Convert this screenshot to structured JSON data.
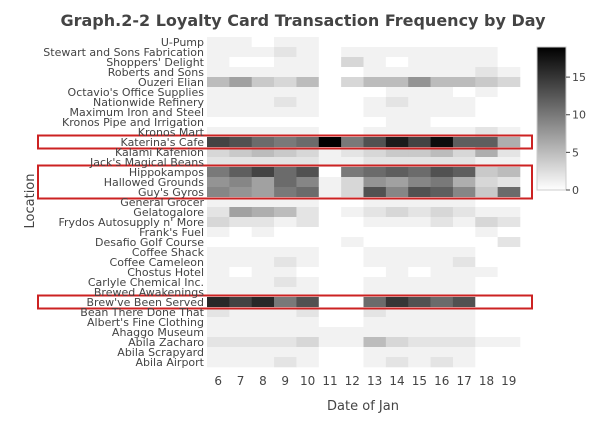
{
  "chart_data": {
    "type": "heatmap",
    "title": "Graph.2-2 Loyalty Card Transaction Frequency by Day",
    "xlabel": "Date of Jan",
    "ylabel": "Location",
    "x": [
      6,
      7,
      8,
      9,
      10,
      11,
      12,
      13,
      14,
      15,
      16,
      17,
      18,
      19
    ],
    "y": [
      "U-Pump",
      "Stewart and Sons Fabrication",
      "Shoppers' Delight",
      "Roberts and Sons",
      "Ouzeri Elian",
      "Octavio's Office Supplies",
      "Nationwide Refinery",
      "Maximum Iron and Steel",
      "Kronos Pipe and Irrigation",
      "Kronos Mart",
      "Katerina's Cafe",
      "Kalami Kafenion",
      "Jack's Magical Beans",
      "Hippokampos",
      "Hallowed Grounds",
      "Guy's Gyros",
      "General Grocer",
      "Gelatogalore",
      "Frydos Autosupply n' More",
      "Frank's Fuel",
      "Desafio Golf Course",
      "Coffee Shack",
      "Coffee Cameleon",
      "Chostus Hotel",
      "Carlyle Chemical Inc.",
      "Brewed Awakenings",
      "Brew've Been Served",
      "Bean There Done That",
      "Albert's Fine Clothing",
      "Ahaggo Museum",
      "Abila Zacharo",
      "Abila Scrapyard",
      "Abila Airport"
    ],
    "z": [
      [
        1,
        1,
        0,
        1,
        1,
        0,
        0,
        0,
        0,
        0,
        0,
        0,
        0,
        0
      ],
      [
        1,
        1,
        1,
        2,
        1,
        0,
        1,
        1,
        1,
        1,
        1,
        1,
        1,
        0
      ],
      [
        1,
        0,
        0,
        1,
        1,
        0,
        3,
        1,
        0,
        1,
        1,
        1,
        1,
        0
      ],
      [
        1,
        1,
        1,
        1,
        1,
        0,
        0,
        1,
        1,
        1,
        1,
        1,
        2,
        1
      ],
      [
        5,
        7,
        4,
        3,
        5,
        0,
        3,
        5,
        5,
        8,
        5,
        5,
        4,
        3
      ],
      [
        1,
        1,
        1,
        1,
        1,
        0,
        0,
        0,
        1,
        1,
        1,
        0,
        1,
        0
      ],
      [
        1,
        1,
        1,
        2,
        1,
        0,
        0,
        1,
        2,
        1,
        1,
        1,
        0,
        0
      ],
      [
        1,
        1,
        1,
        1,
        1,
        0,
        0,
        1,
        1,
        1,
        1,
        1,
        0,
        0
      ],
      [
        0,
        0,
        0,
        0,
        0,
        0,
        0,
        0,
        1,
        1,
        0,
        0,
        0,
        0
      ],
      [
        1,
        1,
        1,
        1,
        1,
        0,
        0,
        1,
        1,
        1,
        1,
        1,
        2,
        1
      ],
      [
        14,
        13,
        11,
        10,
        11,
        19,
        10,
        13,
        17,
        14,
        18,
        12,
        12,
        6
      ],
      [
        3,
        4,
        5,
        4,
        3,
        1,
        2,
        3,
        4,
        4,
        5,
        3,
        6,
        2
      ],
      [
        2,
        2,
        2,
        2,
        2,
        1,
        1,
        2,
        2,
        2,
        2,
        2,
        1,
        1
      ],
      [
        10,
        12,
        14,
        11,
        13,
        0,
        10,
        11,
        12,
        11,
        13,
        12,
        4,
        5
      ],
      [
        8,
        9,
        7,
        11,
        9,
        1,
        3,
        8,
        7,
        9,
        10,
        6,
        3,
        2
      ],
      [
        9,
        8,
        7,
        10,
        11,
        1,
        3,
        13,
        9,
        13,
        12,
        9,
        4,
        11
      ],
      [
        1,
        1,
        1,
        1,
        1,
        0,
        0,
        1,
        1,
        1,
        1,
        1,
        0,
        0
      ],
      [
        2,
        7,
        6,
        5,
        2,
        0,
        1,
        2,
        3,
        2,
        3,
        2,
        1,
        1
      ],
      [
        3,
        2,
        2,
        1,
        2,
        0,
        0,
        1,
        1,
        1,
        2,
        1,
        3,
        2
      ],
      [
        1,
        0,
        1,
        0,
        0,
        0,
        0,
        0,
        0,
        0,
        0,
        0,
        1,
        0
      ],
      [
        0,
        0,
        0,
        0,
        0,
        0,
        1,
        0,
        0,
        0,
        0,
        0,
        0,
        2
      ],
      [
        1,
        1,
        1,
        1,
        1,
        0,
        0,
        1,
        1,
        1,
        1,
        1,
        0,
        0
      ],
      [
        1,
        1,
        1,
        2,
        1,
        0,
        0,
        1,
        1,
        1,
        1,
        2,
        0,
        0
      ],
      [
        1,
        0,
        1,
        1,
        0,
        0,
        0,
        0,
        1,
        0,
        1,
        1,
        1,
        0
      ],
      [
        1,
        1,
        1,
        2,
        1,
        0,
        0,
        1,
        1,
        1,
        1,
        1,
        0,
        0
      ],
      [
        1,
        1,
        1,
        1,
        1,
        0,
        0,
        1,
        1,
        1,
        1,
        1,
        0,
        0
      ],
      [
        16,
        14,
        16,
        10,
        13,
        0,
        0,
        11,
        15,
        13,
        11,
        13,
        0,
        0
      ],
      [
        2,
        1,
        1,
        1,
        2,
        0,
        0,
        2,
        1,
        1,
        1,
        1,
        0,
        0
      ],
      [
        1,
        1,
        1,
        1,
        1,
        0,
        0,
        1,
        1,
        1,
        1,
        1,
        0,
        0
      ],
      [
        1,
        1,
        1,
        1,
        1,
        1,
        1,
        1,
        1,
        1,
        1,
        1,
        0,
        0
      ],
      [
        2,
        2,
        2,
        2,
        3,
        1,
        1,
        5,
        3,
        2,
        2,
        2,
        1,
        1
      ],
      [
        1,
        1,
        1,
        1,
        1,
        0,
        0,
        1,
        1,
        1,
        1,
        1,
        0,
        0
      ],
      [
        1,
        1,
        1,
        2,
        1,
        0,
        0,
        1,
        2,
        1,
        2,
        1,
        0,
        0
      ]
    ],
    "zlim": [
      0,
      19
    ],
    "colorbar": {
      "ticks": [
        0,
        5,
        10,
        15
      ],
      "placement": "right"
    },
    "colorscale": {
      "low": "#ffffff",
      "high": "#000000"
    },
    "highlighted_rows": [
      "Katerina's Cafe",
      "Hippokampos",
      "Hallowed Grounds",
      "Guy's Gyros",
      "Brew've Been Served"
    ],
    "highlight_color": "#cc2222",
    "grid": false
  }
}
